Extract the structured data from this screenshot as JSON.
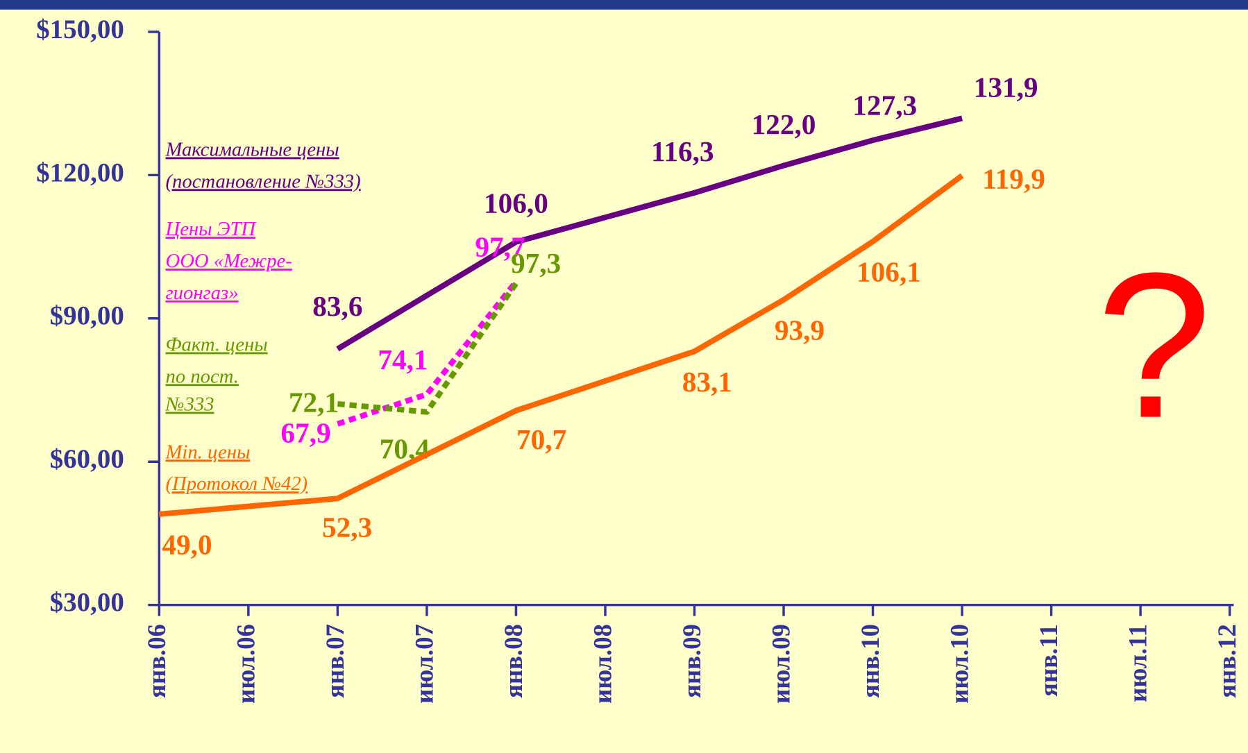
{
  "chart_data": {
    "type": "line",
    "annotation": "?",
    "categories": [
      "янв.06",
      "июл.06",
      "янв.07",
      "июл.07",
      "янв.08",
      "июл.08",
      "янв.09",
      "июл.09",
      "янв.10",
      "июл.10",
      "янв.11",
      "июл.11",
      "янв.12"
    ],
    "ylim": [
      30,
      150
    ],
    "yticks": [
      {
        "value": 30,
        "label": "$30,00"
      },
      {
        "value": 60,
        "label": "$60,00"
      },
      {
        "value": 90,
        "label": "$90,00"
      },
      {
        "value": 120,
        "label": "$120,00"
      },
      {
        "value": 150,
        "label": "$150,00"
      }
    ],
    "series": [
      {
        "name": [
          "Максимальные цены",
          "(постановление №333)"
        ],
        "color": "#660080",
        "dash": false,
        "x": [
          "янв.07",
          "янв.08",
          "янв.09",
          "июл.09",
          "янв.10",
          "июл.10"
        ],
        "values": [
          83.6,
          106.0,
          116.3,
          122.0,
          127.3,
          131.9
        ],
        "value_labels": [
          "83,6",
          "106,0",
          "116,3",
          "122,0",
          "127,3",
          "131,9"
        ]
      },
      {
        "name": [
          "Цены ЭТП",
          "ООО «Межре-",
          "гионгаз»"
        ],
        "color": "#ff00ff",
        "dash": true,
        "x": [
          "янв.07",
          "июл.07",
          "янв.08"
        ],
        "values": [
          67.9,
          74.1,
          97.7
        ],
        "value_labels": [
          "67,9",
          "74,1",
          "97,7"
        ]
      },
      {
        "name": [
          "Факт. цены",
          "по пост.",
          "№333"
        ],
        "color": "#669900",
        "dash": true,
        "x": [
          "янв.07",
          "июл.07",
          "янв.08"
        ],
        "values": [
          72.1,
          70.4,
          97.3
        ],
        "value_labels": [
          "72,1",
          "70,4",
          "97,3"
        ]
      },
      {
        "name": [
          "Min. цены",
          "(Протокол №42)"
        ],
        "color": "#ff6600",
        "dash": false,
        "x": [
          "янв.06",
          "янв.07",
          "янв.08",
          "янв.09",
          "июл.09",
          "янв.10",
          "июл.10"
        ],
        "values": [
          49.0,
          52.3,
          70.7,
          83.1,
          93.9,
          106.1,
          119.9
        ],
        "value_labels": [
          "49,0",
          "52,3",
          "70,7",
          "83,1",
          "93,9",
          "106,1",
          "119,9"
        ]
      }
    ]
  }
}
